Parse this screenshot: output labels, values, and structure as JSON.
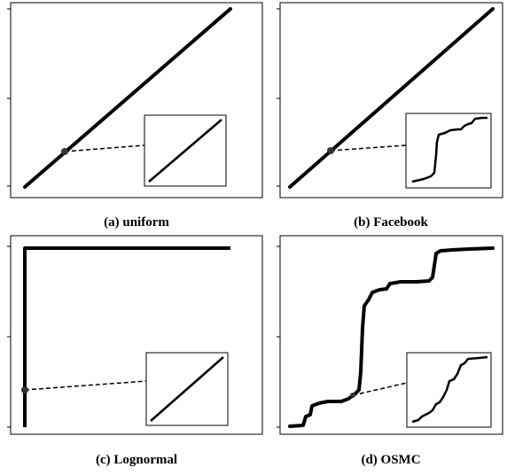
{
  "panels": [
    {
      "caption": "(a) uniform"
    },
    {
      "caption": "(b) Facebook"
    },
    {
      "caption": "(c) Lognormal"
    },
    {
      "caption": "(d) OSMC"
    }
  ]
}
